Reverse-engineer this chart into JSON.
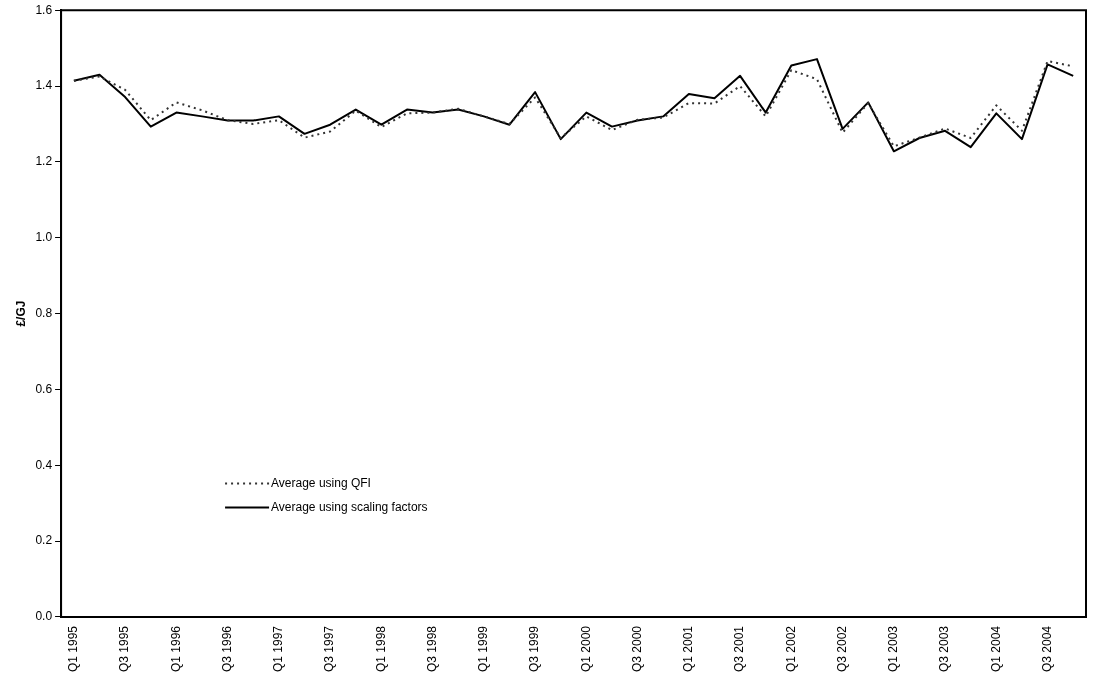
{
  "chart_data": {
    "type": "line",
    "ylabel": "£/GJ",
    "categories": [
      "Q1 1995",
      null,
      "Q3 1995",
      null,
      "Q1 1996",
      null,
      "Q3 1996",
      null,
      "Q1 1997",
      null,
      "Q3 1997",
      null,
      "Q1 1998",
      null,
      "Q3 1998",
      null,
      "Q1 1999",
      null,
      "Q3 1999",
      null,
      "Q1 2000",
      null,
      "Q3 2000",
      null,
      "Q1 2001",
      null,
      "Q3 2001",
      null,
      "Q1 2002",
      null,
      "Q3 2002",
      null,
      "Q1 2003",
      null,
      "Q3 2003",
      null,
      "Q1 2004",
      null,
      "Q3 2004",
      null
    ],
    "series": [
      {
        "name": "Average using QFI",
        "color": "#333333",
        "line_style": "dotted",
        "values": [
          1.414,
          1.425,
          1.39,
          1.31,
          1.357,
          1.336,
          1.31,
          1.3,
          1.31,
          1.264,
          1.28,
          1.335,
          1.292,
          1.328,
          1.33,
          1.34,
          1.32,
          1.3,
          1.37,
          1.263,
          1.32,
          1.284,
          1.311,
          1.317,
          1.355,
          1.354,
          1.4,
          1.32,
          1.442,
          1.418,
          1.277,
          1.355,
          1.241,
          1.264,
          1.288,
          1.263,
          1.349,
          1.282,
          1.466,
          1.452
        ]
      },
      {
        "name": "Average using scaling factors",
        "color": "#000000",
        "line_style": "solid",
        "values": [
          1.414,
          1.43,
          1.371,
          1.293,
          1.33,
          1.32,
          1.309,
          1.309,
          1.32,
          1.274,
          1.298,
          1.338,
          1.298,
          1.338,
          1.33,
          1.338,
          1.32,
          1.298,
          1.384,
          1.26,
          1.33,
          1.293,
          1.309,
          1.32,
          1.379,
          1.368,
          1.427,
          1.33,
          1.454,
          1.471,
          1.287,
          1.357,
          1.228,
          1.263,
          1.282,
          1.239,
          1.328,
          1.26,
          1.457,
          1.427
        ]
      }
    ],
    "ylim": [
      0,
      1.6
    ],
    "yticks": [
      {
        "value": 0,
        "label": "0.0"
      },
      {
        "value": 0.2,
        "label": "0.2"
      },
      {
        "value": 0.4,
        "label": "0.4"
      },
      {
        "value": 0.6,
        "label": "0.6"
      },
      {
        "value": 0.8,
        "label": "0.8"
      },
      {
        "value": 1.0,
        "label": "1.0"
      },
      {
        "value": 1.2,
        "label": "1.2"
      },
      {
        "value": 1.4,
        "label": "1.4"
      },
      {
        "value": 1.6,
        "label": "1.6"
      }
    ],
    "grid": false,
    "legend": "bottom left",
    "marker": "none"
  }
}
